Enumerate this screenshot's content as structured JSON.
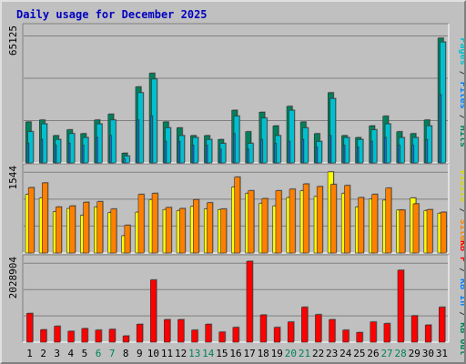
{
  "chart_data": {
    "type": "bar",
    "title": "Daily usage for December 2025",
    "categories": [
      "1",
      "2",
      "3",
      "4",
      "5",
      "6",
      "7",
      "8",
      "9",
      "10",
      "11",
      "12",
      "13",
      "14",
      "15",
      "16",
      "17",
      "18",
      "19",
      "20",
      "21",
      "22",
      "23",
      "24",
      "25",
      "26",
      "27",
      "28",
      "29",
      "30",
      "31"
    ],
    "weekend_days": [
      "6",
      "7",
      "13",
      "14",
      "20",
      "21",
      "27",
      "28"
    ],
    "panels": [
      {
        "id": "top",
        "axis_max_label": "65125",
        "ylim": [
          0,
          70500
        ],
        "right_label_parts": [
          {
            "text": "Pages",
            "color": "#00c0d0"
          },
          {
            "text": " / ",
            "color": "#404040"
          },
          {
            "text": "Files",
            "color": "#0080ff"
          },
          {
            "text": " / ",
            "color": "#404040"
          },
          {
            "text": "Hits",
            "color": "#00805c"
          }
        ],
        "series": [
          {
            "name": "Hits",
            "color": "#00805c",
            "values": [
              21000,
              22000,
              14000,
              17000,
              15000,
              22000,
              25000,
              5000,
              39000,
              46000,
              21000,
              18000,
              14000,
              14000,
              12000,
              27000,
              16000,
              26000,
              19000,
              29000,
              21000,
              15000,
              36000,
              14000,
              13000,
              19000,
              24000,
              16000,
              15000,
              22000,
              64000
            ]
          },
          {
            "name": "Files",
            "color": "#0080ff",
            "values": [
              10000,
              12000,
              9000,
              10000,
              9000,
              13000,
              14000,
              2000,
              22000,
              24000,
              11000,
              11000,
              9000,
              9000,
              7000,
              15000,
              7000,
              12000,
              10000,
              11000,
              12000,
              8000,
              14000,
              9000,
              8000,
              11000,
              13000,
              9000,
              9000,
              12000,
              35000
            ]
          },
          {
            "name": "Pages",
            "color": "#00c0d0",
            "values": [
              16000,
              20000,
              12000,
              15000,
              13000,
              20000,
              22000,
              3500,
              36000,
              43000,
              18000,
              14000,
              13000,
              12000,
              10000,
              24000,
              10000,
              23000,
              14000,
              27000,
              18000,
              11000,
              33000,
              13000,
              12000,
              17000,
              20000,
              13000,
              13000,
              19000,
              62000
            ]
          }
        ]
      },
      {
        "id": "middle",
        "axis_max_label": "1544",
        "ylim": [
          0,
          1670
        ],
        "right_label_parts": [
          {
            "text": "Visits",
            "color": "#d8d800"
          },
          {
            "text": " / ",
            "color": "#404040"
          },
          {
            "text": "Sites",
            "color": "#ff8000"
          }
        ],
        "series": [
          {
            "name": "Visits",
            "color": "#ffff00",
            "values": [
              1120,
              1050,
              790,
              850,
              720,
              880,
              770,
              330,
              780,
              1020,
              830,
              810,
              890,
              840,
              830,
              1260,
              1140,
              950,
              900,
              1060,
              1190,
              1080,
              1550,
              1140,
              880,
              1030,
              1010,
              820,
              1050,
              810,
              760
            ]
          },
          {
            "name": "Sites",
            "color": "#ff8000",
            "values": [
              1250,
              1340,
              880,
              900,
              970,
              980,
              840,
              530,
              1120,
              1140,
              870,
              850,
              1020,
              960,
              840,
              1450,
              1190,
              1040,
              1190,
              1220,
              1320,
              1270,
              1310,
              1290,
              1060,
              1120,
              1240,
              820,
              940,
              830,
              780
            ]
          }
        ]
      },
      {
        "id": "bottom",
        "axis_max_label": "2028904",
        "ylim": [
          0,
          2200000
        ],
        "right_label_parts": [
          {
            "text": "KB F",
            "color": "#ff0000"
          },
          {
            "text": " / ",
            "color": "#404040"
          },
          {
            "text": "KB In",
            "color": "#0080ff"
          },
          {
            "text": " / ",
            "color": "#404040"
          },
          {
            "text": "KB Out",
            "color": "#00805c"
          }
        ],
        "series": [
          {
            "name": "KB F",
            "color": "#ff0000",
            "values": [
              740000,
              320000,
              410000,
              280000,
              350000,
              310000,
              330000,
              160000,
              460000,
              1600000,
              580000,
              580000,
              310000,
              460000,
              260000,
              380000,
              2080000,
              700000,
              380000,
              520000,
              900000,
              710000,
              580000,
              310000,
              250000,
              520000,
              480000,
              1850000,
              680000,
              440000,
              900000
            ]
          }
        ]
      }
    ]
  }
}
